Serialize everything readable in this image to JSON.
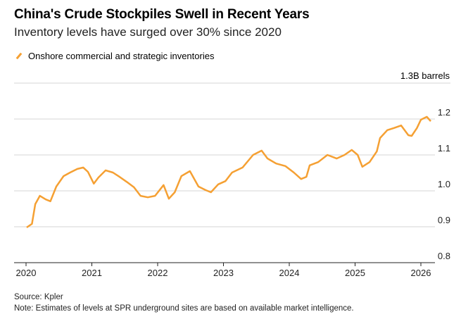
{
  "header": {
    "title": "China's Crude Stockpiles Swell in Recent Years",
    "subtitle": "Inventory levels have surged over 30% since 2020"
  },
  "footer": {
    "source": "Source: Kpler",
    "note": "Note: Estimates of levels at SPR underground sites are based on available market intelligence."
  },
  "chart_data": {
    "type": "line",
    "title": "China's Crude Stockpiles Swell in Recent Years",
    "ylabel": "1.3B barrels",
    "ylim": [
      0.8,
      1.3
    ],
    "xlim": [
      2020,
      2026.3
    ],
    "y_ticks": [
      "0.8",
      "0.9",
      "1.0",
      "1.1",
      "1.2"
    ],
    "x_ticks": [
      "2020",
      "2021",
      "2022",
      "2023",
      "2024",
      "2025",
      "2026"
    ],
    "grid": true,
    "legend_position": "top-left",
    "series": [
      {
        "name": "Onshore commercial and strategic inventories",
        "color": "#f5a033",
        "x": [
          2020.01,
          2020.09,
          2020.14,
          2020.21,
          2020.3,
          2020.37,
          2020.46,
          2020.57,
          2020.67,
          2020.78,
          2020.87,
          2020.94,
          2021.03,
          2021.1,
          2021.21,
          2021.32,
          2021.42,
          2021.53,
          2021.64,
          2021.74,
          2021.85,
          2021.96,
          2022.09,
          2022.17,
          2022.26,
          2022.36,
          2022.49,
          2022.62,
          2022.73,
          2022.81,
          2022.92,
          2023.03,
          2023.13,
          2023.29,
          2023.45,
          2023.58,
          2023.67,
          2023.8,
          2023.94,
          2024.07,
          2024.18,
          2024.26,
          2024.31,
          2024.44,
          2024.58,
          2024.72,
          2024.84,
          2024.95,
          2025.04,
          2025.11,
          2025.22,
          2025.33,
          2025.38,
          2025.49,
          2025.59,
          2025.7,
          2025.81,
          2025.86,
          2025.94,
          2026.0,
          2026.09,
          2026.15
        ],
        "y": [
          0.898,
          0.908,
          0.963,
          0.986,
          0.976,
          0.971,
          1.012,
          1.041,
          1.051,
          1.061,
          1.065,
          1.053,
          1.02,
          1.037,
          1.057,
          1.051,
          1.039,
          1.025,
          1.01,
          0.986,
          0.982,
          0.986,
          1.016,
          0.978,
          0.996,
          1.041,
          1.055,
          1.012,
          1.002,
          0.996,
          1.018,
          1.027,
          1.051,
          1.065,
          1.1,
          1.112,
          1.09,
          1.076,
          1.069,
          1.051,
          1.033,
          1.039,
          1.071,
          1.08,
          1.1,
          1.09,
          1.1,
          1.114,
          1.1,
          1.067,
          1.08,
          1.11,
          1.147,
          1.169,
          1.175,
          1.182,
          1.155,
          1.153,
          1.175,
          1.198,
          1.206,
          1.194
        ]
      }
    ]
  }
}
